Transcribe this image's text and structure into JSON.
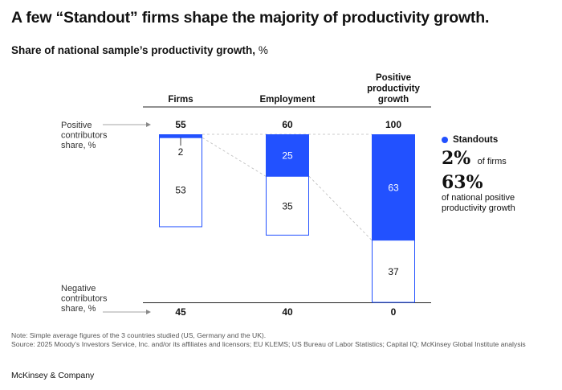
{
  "title": "A few “Standout” firms shape the majority of productivity growth.",
  "subtitle_bold": "Share of national sample’s productivity growth,",
  "subtitle_unit": "%",
  "chart_data": {
    "type": "bar",
    "stacked": true,
    "categories": [
      "Firms",
      "Employment",
      "Positive productivity growth"
    ],
    "category_label_lines": [
      [
        "Firms"
      ],
      [
        "Employment"
      ],
      [
        "Positive",
        "productivity",
        "growth"
      ]
    ],
    "positive_totals": [
      "55",
      "60",
      "100"
    ],
    "negative_totals": [
      "45",
      "40",
      "0"
    ],
    "series": [
      {
        "name": "Standouts",
        "values": [
          2,
          25,
          63
        ],
        "labels": [
          "2",
          "25",
          "63"
        ],
        "color": "#2251ff"
      },
      {
        "values": [
          53,
          35,
          37
        ],
        "labels": [
          "53",
          "35",
          "37"
        ],
        "color": "#ffffff"
      }
    ],
    "ylim": [
      0,
      100
    ],
    "row_labels": {
      "positive": [
        "Positive",
        "contributors",
        "share, %"
      ],
      "negative": [
        "Negative",
        "contributors",
        "share, %"
      ]
    }
  },
  "legend": {
    "label": "Standouts",
    "stat1_value": "2%",
    "stat1_text": "of firms",
    "stat2_value": "63%",
    "stat2_text_line1": "of national positive",
    "stat2_text_line2": "productivity growth"
  },
  "note": "Note: Simple average figures of the 3 countries studied (US, Germany and the UK).",
  "source": "Source: 2025 Moody’s Investors Service, Inc. and/or its affiliates and licensors; EU KLEMS; US Bureau of Labor Statistics; Capital IQ; McKinsey Global Institute analysis",
  "brand": "McKinsey & Company",
  "colors": {
    "accent": "#2251ff",
    "bar_outline": "#2251ff",
    "text": "#111111"
  }
}
